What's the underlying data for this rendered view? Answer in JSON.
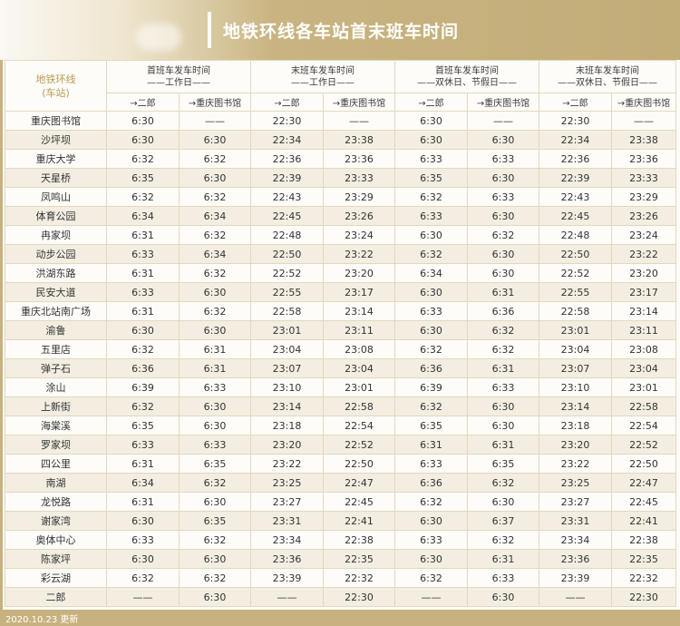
{
  "title": "地铁环线各车站首末班车时间",
  "corner_label": "地铁环线\n(车站)",
  "groups": [
    {
      "line1": "首班车发车时间",
      "line2": "——工作日——"
    },
    {
      "line1": "末班车发车时间",
      "line2": "——工作日——"
    },
    {
      "line1": "首班车发车时间",
      "line2": "——双休日、节假日——"
    },
    {
      "line1": "末班车发车时间",
      "line2": "——双休日、节假日——"
    }
  ],
  "directions": [
    "→二郎",
    "→重庆图书馆",
    "→二郎",
    "→重庆图书馆",
    "→二郎",
    "→重庆图书馆",
    "→二郎",
    "→重庆图书馆"
  ],
  "rows": [
    {
      "station": "重庆图书馆",
      "times": [
        "6:30",
        "——",
        "22:30",
        "——",
        "6:30",
        "——",
        "22:30",
        "——"
      ]
    },
    {
      "station": "沙坪坝",
      "times": [
        "6:30",
        "6:30",
        "22:34",
        "23:38",
        "6:30",
        "6:30",
        "22:34",
        "23:38"
      ]
    },
    {
      "station": "重庆大学",
      "times": [
        "6:32",
        "6:32",
        "22:36",
        "23:36",
        "6:33",
        "6:33",
        "22:36",
        "23:36"
      ]
    },
    {
      "station": "天星桥",
      "times": [
        "6:35",
        "6:30",
        "22:39",
        "23:33",
        "6:35",
        "6:30",
        "22:39",
        "23:33"
      ]
    },
    {
      "station": "凤鸣山",
      "times": [
        "6:32",
        "6:32",
        "22:43",
        "23:29",
        "6:32",
        "6:33",
        "22:43",
        "23:29"
      ]
    },
    {
      "station": "体育公园",
      "times": [
        "6:34",
        "6:34",
        "22:45",
        "23:26",
        "6:33",
        "6:30",
        "22:45",
        "23:26"
      ]
    },
    {
      "station": "冉家坝",
      "times": [
        "6:31",
        "6:32",
        "22:48",
        "23:24",
        "6:30",
        "6:32",
        "22:48",
        "23:24"
      ]
    },
    {
      "station": "动步公园",
      "times": [
        "6:33",
        "6:34",
        "22:50",
        "23:22",
        "6:32",
        "6:30",
        "22:50",
        "23:22"
      ]
    },
    {
      "station": "洪湖东路",
      "times": [
        "6:31",
        "6:32",
        "22:52",
        "23:20",
        "6:34",
        "6:30",
        "22:52",
        "23:20"
      ]
    },
    {
      "station": "民安大道",
      "times": [
        "6:33",
        "6:30",
        "22:55",
        "23:17",
        "6:30",
        "6:31",
        "22:55",
        "23:17"
      ]
    },
    {
      "station": "重庆北站南广场",
      "times": [
        "6:31",
        "6:32",
        "22:58",
        "23:14",
        "6:33",
        "6:36",
        "22:58",
        "23:14"
      ]
    },
    {
      "station": "渝鲁",
      "times": [
        "6:30",
        "6:30",
        "23:01",
        "23:11",
        "6:30",
        "6:32",
        "23:01",
        "23:11"
      ]
    },
    {
      "station": "五里店",
      "times": [
        "6:32",
        "6:31",
        "23:04",
        "23:08",
        "6:32",
        "6:32",
        "23:04",
        "23:08"
      ]
    },
    {
      "station": "弹子石",
      "times": [
        "6:36",
        "6:31",
        "23:07",
        "23:04",
        "6:36",
        "6:31",
        "23:07",
        "23:04"
      ]
    },
    {
      "station": "涂山",
      "times": [
        "6:39",
        "6:33",
        "23:10",
        "23:01",
        "6:39",
        "6:33",
        "23:10",
        "23:01"
      ]
    },
    {
      "station": "上新街",
      "times": [
        "6:32",
        "6:30",
        "23:14",
        "22:58",
        "6:32",
        "6:30",
        "23:14",
        "22:58"
      ]
    },
    {
      "station": "海棠溪",
      "times": [
        "6:35",
        "6:30",
        "23:18",
        "22:54",
        "6:35",
        "6:30",
        "23:18",
        "22:54"
      ]
    },
    {
      "station": "罗家坝",
      "times": [
        "6:33",
        "6:33",
        "23:20",
        "22:52",
        "6:31",
        "6:31",
        "23:20",
        "22:52"
      ]
    },
    {
      "station": "四公里",
      "times": [
        "6:31",
        "6:35",
        "23:22",
        "22:50",
        "6:33",
        "6:35",
        "23:22",
        "22:50"
      ]
    },
    {
      "station": "南湖",
      "times": [
        "6:34",
        "6:32",
        "23:25",
        "22:47",
        "6:36",
        "6:32",
        "23:25",
        "22:47"
      ]
    },
    {
      "station": "龙悦路",
      "times": [
        "6:31",
        "6:30",
        "23:27",
        "22:45",
        "6:32",
        "6:30",
        "23:27",
        "22:45"
      ]
    },
    {
      "station": "谢家湾",
      "times": [
        "6:30",
        "6:35",
        "23:31",
        "22:41",
        "6:30",
        "6:37",
        "23:31",
        "22:41"
      ]
    },
    {
      "station": "奥体中心",
      "times": [
        "6:33",
        "6:32",
        "23:34",
        "22:38",
        "6:33",
        "6:32",
        "23:34",
        "22:38"
      ]
    },
    {
      "station": "陈家坪",
      "times": [
        "6:30",
        "6:30",
        "23:36",
        "22:35",
        "6:30",
        "6:31",
        "23:36",
        "22:35"
      ]
    },
    {
      "station": "彩云湖",
      "times": [
        "6:32",
        "6:32",
        "23:39",
        "22:32",
        "6:32",
        "6:33",
        "23:39",
        "22:32"
      ]
    },
    {
      "station": "二郎",
      "times": [
        "——",
        "6:30",
        "——",
        "22:30",
        "——",
        "6:30",
        "——",
        "22:30"
      ]
    }
  ],
  "footer": "2020.10.23 更新"
}
